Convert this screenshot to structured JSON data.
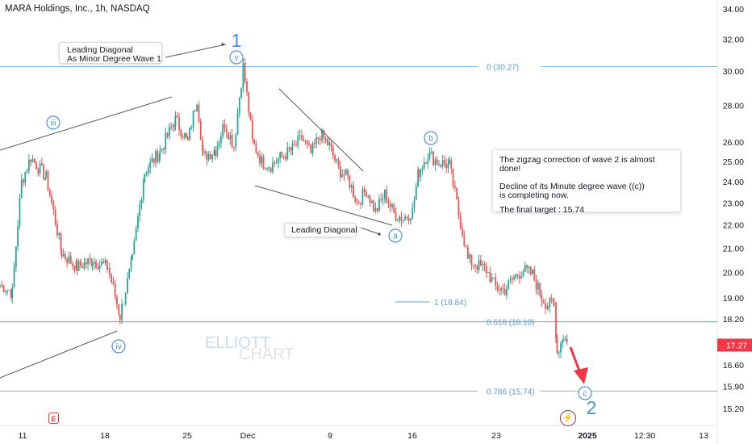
{
  "title": "MARA Holdings, Inc., 1h, NASDAQ",
  "colors": {
    "up": "#26a69a",
    "down": "#ef5350",
    "fib": "#5b9bd5",
    "label_blue": "#4a90e2",
    "price_badge": "#f23645",
    "arrow": "#f23645"
  },
  "price_axis": {
    "ticks": [
      "34.00",
      "32.00",
      "30.00",
      "28.00",
      "26.00",
      "25.00",
      "24.00",
      "23.00",
      "22.00",
      "21.00",
      "20.00",
      "19.00",
      "18.20",
      "16.60",
      "15.90",
      "15.20"
    ],
    "current_price": "17.27"
  },
  "time_axis": {
    "ticks": [
      "11",
      "18",
      "25",
      "Dec",
      "9",
      "16",
      "23",
      "2025",
      "12:30",
      "13"
    ]
  },
  "fib_levels": [
    {
      "label": "0 (30.27)",
      "price": 30.27
    },
    {
      "label": "1 (18.84)",
      "price": 18.84
    },
    {
      "label": "0.618 (18.10)",
      "price": 18.1
    },
    {
      "label": "0.786 (15.74)",
      "price": 15.74
    }
  ],
  "wave_labels": {
    "w1": "1",
    "w2": "2",
    "v": "v",
    "iii": "iii",
    "iv": "iv",
    "a": "a",
    "b": "b",
    "c": "c"
  },
  "callouts": {
    "leading_diagonal_1_line1": "Leading Diagonal",
    "leading_diagonal_1_line2": "As Minor Degree Wave 1",
    "leading_diagonal_2": "Leading Diagonal"
  },
  "info_box": {
    "line1": "The zigzag correction of wave 2 is almost done!",
    "line2": "Decline of its Minute degree wave ((c))",
    "line3": "is completing now.",
    "line4": "The final target :  15.74"
  },
  "watermark": {
    "line1": "ELLIOTT",
    "line2": "CHART"
  },
  "badges": {
    "earnings": "E",
    "event_icon": "lightning-icon"
  },
  "chart_data": {
    "type": "candlestick",
    "close_path": [
      [
        0,
        19.5
      ],
      [
        40,
        19.2
      ],
      [
        70,
        24.0
      ],
      [
        100,
        25.2
      ],
      [
        150,
        24.2
      ],
      [
        200,
        20.8
      ],
      [
        250,
        20.2
      ],
      [
        300,
        20.5
      ],
      [
        350,
        20.2
      ],
      [
        390,
        18.3
      ],
      [
        430,
        20.5
      ],
      [
        470,
        24.5
      ],
      [
        520,
        25.5
      ],
      [
        570,
        27.2
      ],
      [
        610,
        26.0
      ],
      [
        640,
        28.4
      ],
      [
        660,
        25.2
      ],
      [
        700,
        25.6
      ],
      [
        730,
        27.0
      ],
      [
        760,
        25.8
      ],
      [
        790,
        30.27
      ],
      [
        820,
        26.0
      ],
      [
        850,
        25.0
      ],
      [
        880,
        24.8
      ],
      [
        910,
        25.2
      ],
      [
        950,
        25.6
      ],
      [
        980,
        26.2
      ],
      [
        1010,
        25.4
      ],
      [
        1040,
        26.4
      ],
      [
        1070,
        25.8
      ],
      [
        1100,
        24.6
      ],
      [
        1130,
        24.2
      ],
      [
        1160,
        23.0
      ],
      [
        1190,
        23.6
      ],
      [
        1220,
        22.6
      ],
      [
        1250,
        23.4
      ],
      [
        1280,
        22.5
      ],
      [
        1310,
        22.3
      ],
      [
        1340,
        22.6
      ],
      [
        1360,
        24.5
      ],
      [
        1390,
        25.4
      ],
      [
        1420,
        25.0
      ],
      [
        1460,
        24.8
      ],
      [
        1490,
        22.5
      ],
      [
        1520,
        20.5
      ],
      [
        1550,
        20.3
      ],
      [
        1580,
        20.1
      ],
      [
        1610,
        19.4
      ],
      [
        1640,
        19.3
      ],
      [
        1670,
        19.8
      ],
      [
        1700,
        20.1
      ],
      [
        1730,
        19.9
      ],
      [
        1760,
        19.0
      ],
      [
        1780,
        18.7
      ],
      [
        1800,
        18.8
      ],
      [
        1810,
        17.0
      ],
      [
        1830,
        17.6
      ],
      [
        1845,
        17.27
      ]
    ],
    "x_unit": "hourly bars (index)",
    "y_unit": "USD",
    "ylim": [
      15.2,
      34.0
    ],
    "y_scale": "log"
  }
}
